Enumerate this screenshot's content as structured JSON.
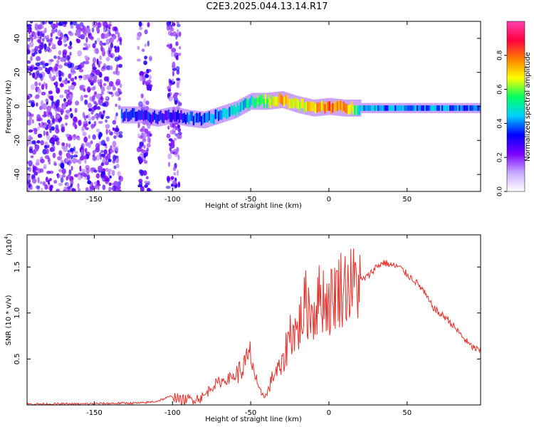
{
  "title": "C2E3.2025.044.13.14.R17",
  "chart_data": [
    {
      "type": "heatmap",
      "name": "spectrogram",
      "xlabel": "Height of straight line (km)",
      "ylabel": "Frequency (Hz)",
      "xlim": [
        -193,
        97
      ],
      "ylim": [
        -50,
        50
      ],
      "xticks": [
        -150,
        -100,
        -50,
        0,
        50
      ],
      "yticks": [
        -40,
        -20,
        0,
        20,
        40
      ],
      "colorbar": {
        "label": "Normalized spectral amplitude",
        "range": [
          0,
          1
        ],
        "ticks": [
          0.0,
          0.2,
          0.4,
          0.6,
          0.8
        ],
        "colors": [
          "#ffffff",
          "#c8a8ff",
          "#7a00ff",
          "#0000ff",
          "#00d0ff",
          "#00ff60",
          "#ffff00",
          "#ff8000",
          "#ff0040",
          "#ff40b0"
        ]
      },
      "ridge": {
        "x": [
          -133,
          -120,
          -110,
          -100,
          -90,
          -80,
          -70,
          -60,
          -50,
          -40,
          -30,
          -20,
          -10,
          0,
          10,
          20,
          40,
          60,
          80,
          97
        ],
        "freq": [
          -5,
          -5,
          -7,
          -5,
          -7,
          -8,
          -5,
          -2,
          3,
          3,
          4,
          1,
          -1,
          0,
          -1,
          -1,
          -1,
          -1,
          -1,
          -1
        ],
        "amplitude": [
          0.35,
          0.3,
          0.3,
          0.3,
          0.35,
          0.4,
          0.4,
          0.45,
          0.5,
          0.6,
          0.75,
          0.65,
          0.7,
          0.8,
          0.75,
          0.45,
          0.4,
          0.4,
          0.4,
          0.4
        ]
      }
    },
    {
      "type": "line",
      "name": "snr",
      "xlabel": "Height of straight line (km)",
      "ylabel": "SNR (10 * v/v)",
      "yscale_label": "(x10",
      "yscale_exp": "4",
      "xlim": [
        -193,
        97
      ],
      "ylim": [
        0,
        1.85
      ],
      "xticks": [
        -150,
        -100,
        -50,
        0,
        50
      ],
      "yticks": [
        0.5,
        1.0,
        1.5
      ],
      "color": "#e8302a",
      "x": [
        -193,
        -160,
        -130,
        -120,
        -110,
        -100,
        -95,
        -90,
        -85,
        -80,
        -75,
        -70,
        -65,
        -60,
        -55,
        -50,
        -47,
        -45,
        -40,
        -35,
        -30,
        -25,
        -20,
        -15,
        -10,
        -5,
        0,
        5,
        10,
        15,
        20,
        25,
        30,
        35,
        40,
        45,
        50,
        55,
        60,
        65,
        70,
        75,
        80,
        85,
        90,
        97
      ],
      "y": [
        0.01,
        0.01,
        0.02,
        0.02,
        0.04,
        0.1,
        0.05,
        0.06,
        0.07,
        0.09,
        0.2,
        0.25,
        0.28,
        0.32,
        0.4,
        0.55,
        0.3,
        0.15,
        0.1,
        0.35,
        0.4,
        0.8,
        0.8,
        1.1,
        1.0,
        1.2,
        1.1,
        1.25,
        1.3,
        1.3,
        1.35,
        1.4,
        1.5,
        1.55,
        1.52,
        1.5,
        1.42,
        1.35,
        1.25,
        1.1,
        1.0,
        0.95,
        0.85,
        0.75,
        0.65,
        0.58
      ]
    }
  ]
}
